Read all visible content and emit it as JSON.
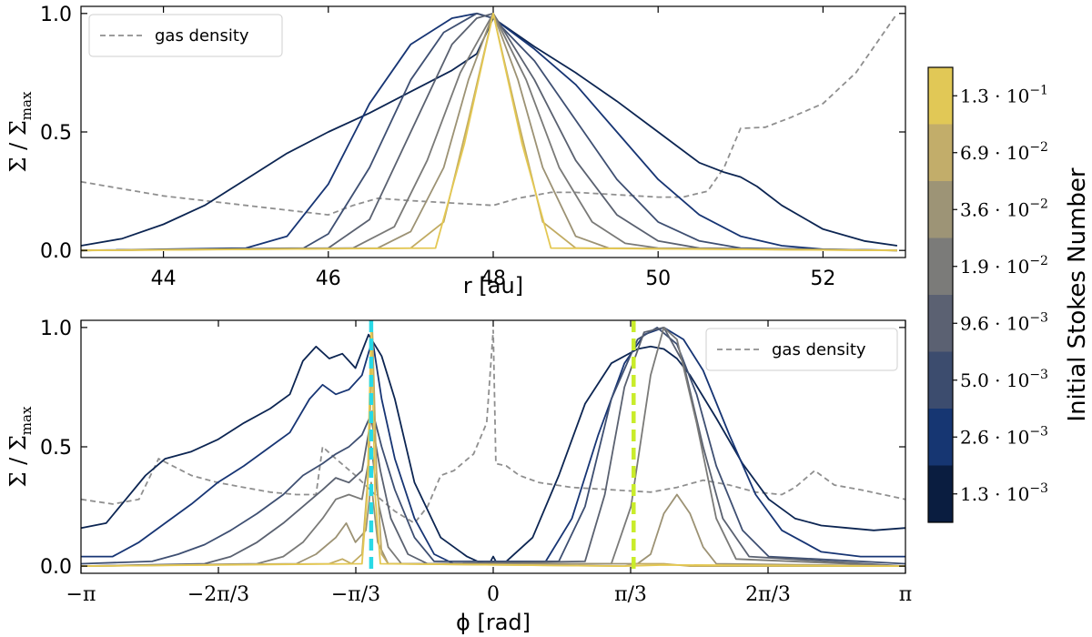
{
  "chart_data": [
    {
      "type": "line",
      "panel": "top",
      "xlabel": "r [au]",
      "ylabel": "Σ / Σ_max",
      "xlim": [
        43,
        53
      ],
      "ylim": [
        -0.03,
        1.03
      ],
      "xticks": [
        44,
        46,
        48,
        50,
        52
      ],
      "xtick_labels": [
        "44",
        "46",
        "48",
        "50",
        "52"
      ],
      "yticks": [
        0.0,
        0.5,
        1.0
      ],
      "ytick_labels": [
        "0.0",
        "0.5",
        "1.0"
      ],
      "legend": {
        "position": "top-left",
        "label": "gas density"
      },
      "gas_density": {
        "name": "gas density",
        "x": [
          43,
          43.5,
          44,
          44.5,
          45,
          45.5,
          46,
          46.3,
          46.6,
          47,
          47.5,
          48,
          48.3,
          48.7,
          49,
          49.5,
          50,
          50.3,
          50.6,
          50.8,
          51,
          51.3,
          51.6,
          52,
          52.4,
          52.9
        ],
        "y": [
          0.29,
          0.26,
          0.23,
          0.21,
          0.19,
          0.17,
          0.15,
          0.19,
          0.22,
          0.21,
          0.2,
          0.19,
          0.22,
          0.245,
          0.245,
          0.235,
          0.225,
          0.225,
          0.25,
          0.35,
          0.515,
          0.52,
          0.56,
          0.62,
          0.75,
          1.0
        ]
      },
      "series": [
        {
          "stokes": "1.3·10^-3",
          "color": "#0c2552",
          "x": [
            43,
            43.5,
            44,
            44.5,
            45,
            45.5,
            46,
            46.5,
            47,
            47.5,
            47.8,
            48,
            48.5,
            49,
            49.5,
            50,
            50.5,
            50.8,
            51,
            51.2,
            51.5,
            52,
            52.5,
            52.9
          ],
          "y": [
            0.02,
            0.05,
            0.11,
            0.19,
            0.3,
            0.41,
            0.5,
            0.58,
            0.67,
            0.76,
            0.83,
            0.98,
            0.86,
            0.75,
            0.63,
            0.5,
            0.37,
            0.33,
            0.31,
            0.27,
            0.19,
            0.09,
            0.04,
            0.02
          ]
        },
        {
          "stokes": "2.6·10^-3",
          "color": "#173574",
          "x": [
            43,
            45,
            45.5,
            46,
            46.5,
            47,
            47.5,
            47.8,
            48,
            48.5,
            49,
            49.5,
            50,
            50.5,
            51,
            51.5,
            52,
            52.9
          ],
          "y": [
            0.0,
            0.01,
            0.06,
            0.28,
            0.62,
            0.87,
            0.98,
            1.0,
            0.98,
            0.85,
            0.7,
            0.5,
            0.3,
            0.15,
            0.06,
            0.02,
            0.005,
            0.0
          ]
        },
        {
          "stokes": "5.0·10^-3",
          "color": "#3e4f72",
          "x": [
            43,
            45.7,
            46,
            46.5,
            47,
            47.4,
            47.8,
            48,
            48.5,
            49,
            49.5,
            50,
            50.5,
            51,
            52.9
          ],
          "y": [
            0.0,
            0.01,
            0.07,
            0.35,
            0.72,
            0.92,
            1.0,
            0.98,
            0.8,
            0.55,
            0.3,
            0.12,
            0.04,
            0.01,
            0.0
          ]
        },
        {
          "stokes": "9.6·10^-3",
          "color": "#5a6170",
          "x": [
            43,
            46,
            46.5,
            47,
            47.5,
            47.8,
            48,
            48.5,
            49,
            49.5,
            50,
            50.5,
            52.9
          ],
          "y": [
            0.0,
            0.01,
            0.13,
            0.5,
            0.87,
            0.98,
            1.0,
            0.72,
            0.38,
            0.15,
            0.04,
            0.01,
            0.0
          ]
        },
        {
          "stokes": "1.9·10^-2",
          "color": "#7a7a78",
          "x": [
            43,
            46.3,
            46.8,
            47.2,
            47.6,
            48,
            48.4,
            48.8,
            49.2,
            49.6,
            50,
            52.9
          ],
          "y": [
            0.0,
            0.01,
            0.1,
            0.38,
            0.75,
            1.0,
            0.72,
            0.35,
            0.12,
            0.03,
            0.01,
            0.0
          ]
        },
        {
          "stokes": "3.6·10^-2",
          "color": "#9c9274",
          "x": [
            43,
            46.6,
            47,
            47.4,
            47.7,
            48,
            48.3,
            48.6,
            49,
            49.4,
            52.9
          ],
          "y": [
            0.0,
            0.01,
            0.08,
            0.35,
            0.72,
            1.0,
            0.72,
            0.35,
            0.06,
            0.01,
            0.0
          ]
        },
        {
          "stokes": "6.9·10^-2",
          "color": "#c1ab62",
          "x": [
            43,
            47,
            47.4,
            47.7,
            48,
            48.3,
            48.6,
            49,
            52.9
          ],
          "y": [
            0.0,
            0.01,
            0.12,
            0.55,
            1.0,
            0.55,
            0.12,
            0.01,
            0.0
          ]
        },
        {
          "stokes": "1.3·10^-1",
          "color": "#e4c853",
          "x": [
            43,
            47.3,
            47.65,
            48,
            48.35,
            48.7,
            52.9
          ],
          "y": [
            0.0,
            0.01,
            0.45,
            1.0,
            0.45,
            0.01,
            0.0
          ]
        }
      ]
    },
    {
      "type": "line",
      "panel": "bottom",
      "xlabel": "ϕ [rad]",
      "ylabel": "Σ / Σ_max",
      "xlim": [
        -3.1416,
        3.1416
      ],
      "ylim": [
        -0.03,
        1.03
      ],
      "xticks": [
        -3.1416,
        -2.0944,
        -1.0472,
        0,
        1.0472,
        2.0944,
        3.1416
      ],
      "xtick_labels": [
        "−π",
        "−2π/3",
        "−π/3",
        "0",
        "π/3",
        "2π/3",
        "π"
      ],
      "yticks": [
        0.0,
        0.5,
        1.0
      ],
      "ytick_labels": [
        "0.0",
        "0.5",
        "1.0"
      ],
      "legend": {
        "position": "top-right",
        "label": "gas density"
      },
      "vlines": [
        {
          "x": -0.93,
          "color": "#28d9e6"
        },
        {
          "x": 1.07,
          "color": "#c9ec2a"
        }
      ],
      "gas_density": {
        "name": "gas density",
        "x": [
          -3.14,
          -2.9,
          -2.7,
          -2.55,
          -2.3,
          -2.1,
          -1.9,
          -1.7,
          -1.5,
          -1.35,
          -1.3,
          -1.2,
          -1.05,
          -0.9,
          -0.75,
          -0.6,
          -0.5,
          -0.4,
          -0.3,
          -0.15,
          -0.05,
          0,
          0.02,
          0.1,
          0.2,
          0.35,
          0.6,
          0.9,
          1.2,
          1.4,
          1.6,
          1.8,
          2.0,
          2.2,
          2.3,
          2.45,
          2.6,
          2.8,
          3.14
        ],
        "y": [
          0.28,
          0.26,
          0.28,
          0.45,
          0.38,
          0.35,
          0.33,
          0.31,
          0.3,
          0.3,
          0.5,
          0.45,
          0.38,
          0.3,
          0.23,
          0.18,
          0.25,
          0.38,
          0.4,
          0.47,
          0.6,
          0.99,
          0.43,
          0.42,
          0.38,
          0.35,
          0.33,
          0.32,
          0.31,
          0.33,
          0.36,
          0.34,
          0.31,
          0.3,
          0.33,
          0.4,
          0.34,
          0.32,
          0.28
        ]
      },
      "series": [
        {
          "stokes": "1.3·10^-3",
          "color": "#0c2552",
          "x": [
            -3.14,
            -2.95,
            -2.8,
            -2.65,
            -2.5,
            -2.3,
            -2.1,
            -1.9,
            -1.7,
            -1.55,
            -1.45,
            -1.35,
            -1.25,
            -1.15,
            -1.05,
            -0.95,
            -0.85,
            -0.75,
            -0.6,
            -0.4,
            -0.2,
            -0.1,
            -0.03,
            0,
            0.03,
            0.1,
            0.3,
            0.5,
            0.7,
            0.9,
            1.1,
            1.2,
            1.3,
            1.4,
            1.5,
            1.7,
            1.9,
            2.1,
            2.3,
            2.5,
            2.7,
            2.9,
            3.14
          ],
          "y": [
            0.16,
            0.18,
            0.28,
            0.38,
            0.45,
            0.48,
            0.53,
            0.6,
            0.66,
            0.72,
            0.86,
            0.92,
            0.87,
            0.89,
            0.83,
            0.97,
            0.88,
            0.7,
            0.35,
            0.12,
            0.04,
            0.015,
            0.01,
            0.04,
            0.01,
            0.02,
            0.12,
            0.38,
            0.68,
            0.85,
            0.91,
            0.92,
            0.91,
            0.87,
            0.8,
            0.62,
            0.43,
            0.28,
            0.2,
            0.17,
            0.16,
            0.15,
            0.16
          ]
        },
        {
          "stokes": "2.6·10^-3",
          "color": "#173574",
          "x": [
            -3.14,
            -2.9,
            -2.7,
            -2.5,
            -2.3,
            -2.1,
            -1.9,
            -1.7,
            -1.55,
            -1.4,
            -1.3,
            -1.2,
            -1.1,
            -1.0,
            -0.92,
            -0.85,
            -0.75,
            -0.6,
            -0.45,
            -0.3,
            0.4,
            0.6,
            0.8,
            1.0,
            1.15,
            1.3,
            1.45,
            1.6,
            1.8,
            2.0,
            2.2,
            2.5,
            2.8,
            3.14
          ],
          "y": [
            0.04,
            0.04,
            0.1,
            0.18,
            0.26,
            0.35,
            0.42,
            0.5,
            0.56,
            0.7,
            0.76,
            0.72,
            0.74,
            0.8,
            0.95,
            0.7,
            0.45,
            0.2,
            0.05,
            0.01,
            0.02,
            0.2,
            0.55,
            0.85,
            0.97,
            1.0,
            0.95,
            0.82,
            0.55,
            0.3,
            0.15,
            0.06,
            0.04,
            0.04
          ]
        },
        {
          "stokes": "5.0·10^-3",
          "color": "#3e4f72",
          "x": [
            -3.14,
            -2.6,
            -2.4,
            -2.2,
            -2.0,
            -1.8,
            -1.6,
            -1.45,
            -1.3,
            -1.2,
            -1.1,
            -1.0,
            -0.92,
            -0.85,
            -0.75,
            -0.6,
            -0.45,
            0.5,
            0.7,
            0.9,
            1.1,
            1.25,
            1.4,
            1.55,
            1.7,
            1.9,
            2.1,
            3.14
          ],
          "y": [
            0.01,
            0.02,
            0.05,
            0.09,
            0.15,
            0.22,
            0.3,
            0.38,
            0.43,
            0.47,
            0.5,
            0.55,
            0.65,
            0.5,
            0.32,
            0.12,
            0.02,
            0.02,
            0.25,
            0.7,
            0.95,
            1.0,
            0.93,
            0.72,
            0.42,
            0.15,
            0.04,
            0.01
          ]
        },
        {
          "stokes": "9.6·10^-3",
          "color": "#5a6170",
          "x": [
            -3.14,
            -2.2,
            -2.0,
            -1.8,
            -1.6,
            -1.45,
            -1.3,
            -1.2,
            -1.1,
            -1.0,
            -0.93,
            -0.86,
            -0.78,
            -0.65,
            -0.5,
            0.7,
            0.85,
            1.0,
            1.15,
            1.3,
            1.45,
            1.6,
            1.75,
            1.95,
            3.14
          ],
          "y": [
            0.0,
            0.01,
            0.04,
            0.1,
            0.18,
            0.25,
            0.32,
            0.37,
            0.35,
            0.4,
            0.62,
            0.4,
            0.2,
            0.05,
            0.01,
            0.02,
            0.3,
            0.75,
            0.98,
            1.0,
            0.85,
            0.5,
            0.2,
            0.04,
            0.0
          ]
        },
        {
          "stokes": "1.9·10^-2",
          "color": "#7a7a78",
          "x": [
            -3.14,
            -1.8,
            -1.6,
            -1.45,
            -1.3,
            -1.2,
            -1.1,
            -1.0,
            -0.93,
            -0.87,
            -0.8,
            -0.7,
            0.9,
            1.05,
            1.2,
            1.3,
            1.4,
            1.55,
            1.7,
            1.85,
            3.14
          ],
          "y": [
            0.0,
            0.01,
            0.04,
            0.1,
            0.2,
            0.28,
            0.3,
            0.28,
            0.5,
            0.25,
            0.08,
            0.01,
            0.01,
            0.25,
            0.8,
            1.0,
            0.95,
            0.6,
            0.2,
            0.03,
            0.0
          ]
        },
        {
          "stokes": "3.6·10^-2",
          "color": "#9c9274",
          "x": [
            -3.14,
            -1.5,
            -1.35,
            -1.2,
            -1.12,
            -1.05,
            -0.97,
            -0.93,
            -0.88,
            -0.8,
            1.1,
            1.2,
            1.3,
            1.4,
            1.5,
            1.6,
            1.7,
            3.14
          ],
          "y": [
            0.0,
            0.01,
            0.05,
            0.12,
            0.18,
            0.1,
            0.15,
            0.35,
            0.1,
            0.01,
            0.01,
            0.05,
            0.22,
            0.3,
            0.22,
            0.08,
            0.01,
            0.0
          ]
        },
        {
          "stokes": "6.9·10^-2",
          "color": "#c1ab62",
          "x": [
            -3.14,
            -1.25,
            -1.15,
            -1.08,
            -1.0,
            -0.95,
            -0.92,
            -0.89,
            -0.85,
            -0.8,
            1.0,
            1.1,
            1.3,
            1.5,
            3.14
          ],
          "y": [
            0.0,
            0.01,
            0.03,
            0.01,
            0.05,
            0.4,
            0.98,
            0.4,
            0.05,
            0.01,
            0.0,
            0.01,
            0.01,
            0.0,
            0.0
          ]
        },
        {
          "stokes": "1.3·10^-1",
          "color": "#e4c853",
          "x": [
            -3.14,
            -1.0,
            -0.96,
            -0.93,
            -0.9,
            -0.86,
            1.0,
            1.3,
            3.14
          ],
          "y": [
            0.0,
            0.01,
            0.3,
            1.0,
            0.3,
            0.01,
            0.0,
            0.005,
            0.0
          ]
        }
      ]
    }
  ],
  "colorbar": {
    "title": "Initial Stokes Number",
    "levels": [
      {
        "label": "1.3 · 10",
        "exp": "−3",
        "color": "#0a1d40"
      },
      {
        "label": "2.6 · 10",
        "exp": "−3",
        "color": "#163672"
      },
      {
        "label": "5.0 · 10",
        "exp": "−3",
        "color": "#3c4c6e"
      },
      {
        "label": "9.6 · 10",
        "exp": "−3",
        "color": "#5b6172"
      },
      {
        "label": "1.9 · 10",
        "exp": "−2",
        "color": "#7b7b79"
      },
      {
        "label": "3.6 · 10",
        "exp": "−2",
        "color": "#9d9476"
      },
      {
        "label": "6.9 · 10",
        "exp": "−2",
        "color": "#c2ad6a"
      },
      {
        "label": "1.3 · 10",
        "exp": "−1",
        "color": "#e1c856"
      }
    ]
  }
}
